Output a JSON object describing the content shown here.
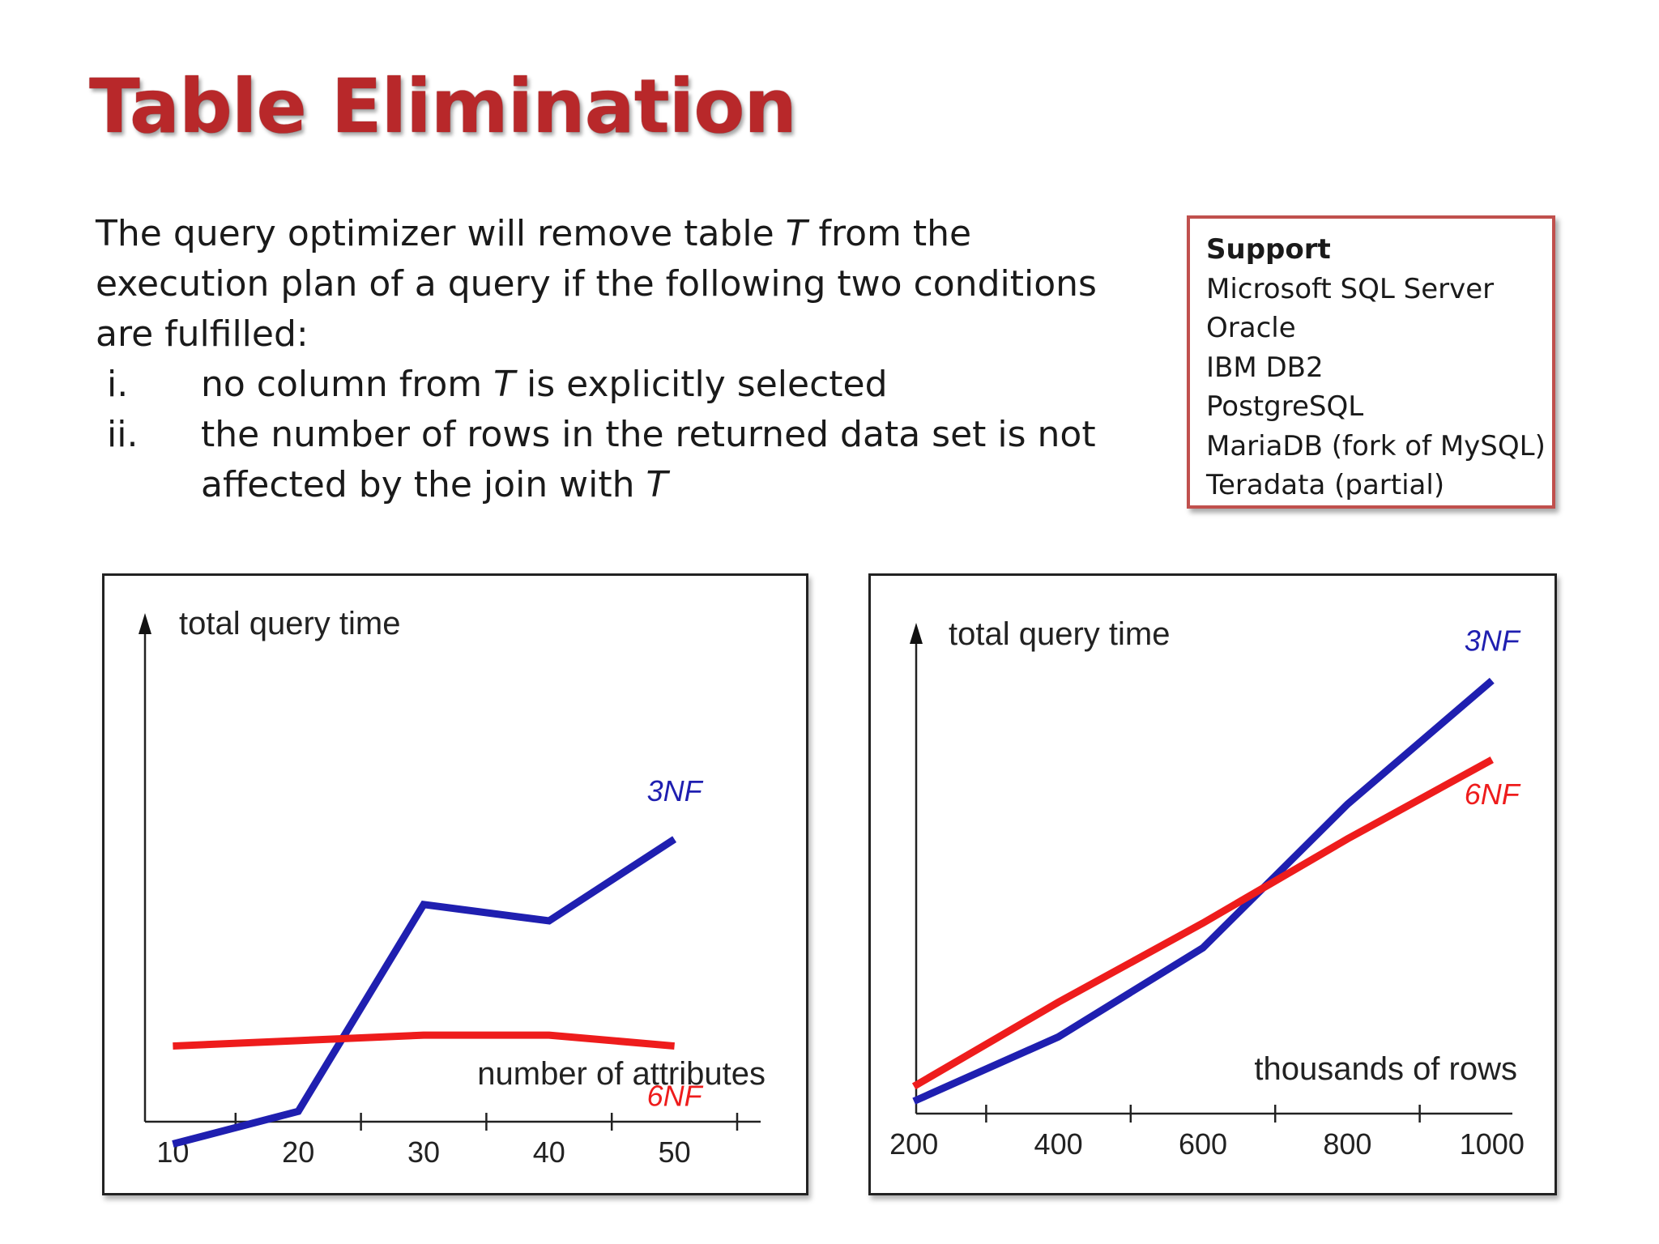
{
  "slide": {
    "title": "Table Elimination",
    "intro_html": "The query optimizer will remove table <i>T</i> from the execution plan of a query if the following two conditions are fulfilled:",
    "conditions": [
      {
        "num": "i.",
        "html": "no column from <i>T</i> is explicitly selected"
      },
      {
        "num": "ii.",
        "html": "the number of rows in the returned data set is not affected by the join with <i>T</i>"
      }
    ]
  },
  "support": {
    "heading": "Support",
    "items": [
      "Microsoft SQL Server",
      "Oracle",
      "IBM DB2",
      "PostgreSQL",
      "MariaDB (fork of MySQL)",
      "Teradata (partial)"
    ]
  },
  "chart_data": [
    {
      "type": "line",
      "ylabel": "total query time",
      "xlabel": "number of attributes",
      "x": [
        10,
        20,
        30,
        40,
        50
      ],
      "xlim": [
        5,
        55
      ],
      "ylim": [
        0,
        100
      ],
      "grid": false,
      "series": [
        {
          "name": "3NF",
          "color": "#1f1fb0",
          "values": [
            9,
            15,
            53,
            50,
            65
          ]
        },
        {
          "name": "6NF",
          "color": "#ee1c1c",
          "values": [
            27,
            28,
            29,
            29,
            27
          ]
        }
      ],
      "series_labels": [
        {
          "name": "3NF",
          "x": 50,
          "y": 72
        },
        {
          "name": "6NF",
          "x": 50,
          "y": 16
        }
      ]
    },
    {
      "type": "line",
      "ylabel": "total query time",
      "xlabel": "thousands of rows",
      "x": [
        200,
        400,
        600,
        800,
        1000
      ],
      "xlim": [
        100,
        1100
      ],
      "ylim": [
        0,
        100
      ],
      "grid": false,
      "series": [
        {
          "name": "3NF",
          "color": "#1f1fb0",
          "values": [
            12,
            25,
            43,
            72,
            97
          ]
        },
        {
          "name": "6NF",
          "color": "#ee1c1c",
          "values": [
            15,
            32,
            48,
            65,
            81
          ]
        }
      ],
      "series_labels": [
        {
          "name": "3NF",
          "x": 1000,
          "y": 103
        },
        {
          "name": "6NF",
          "x": 1000,
          "y": 72
        }
      ]
    }
  ]
}
